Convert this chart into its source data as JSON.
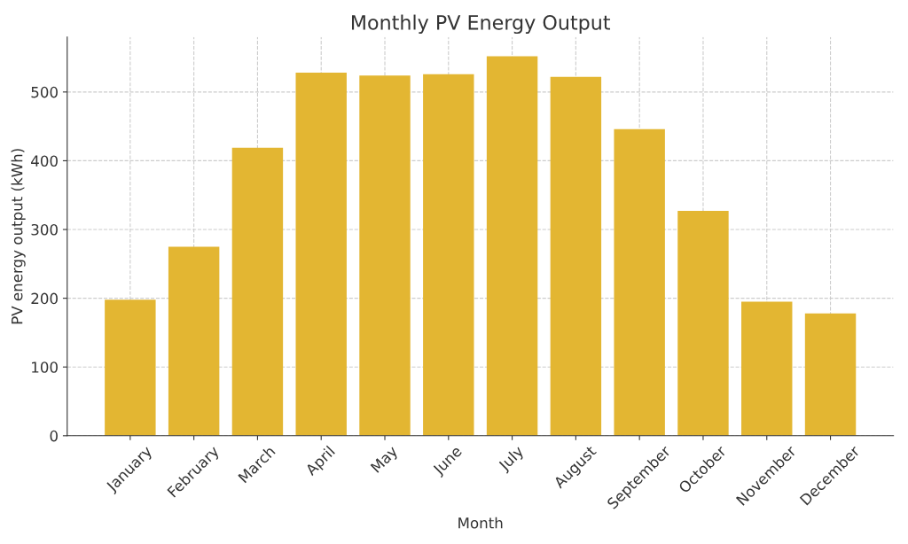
{
  "chart_data": {
    "type": "bar",
    "title": "Monthly PV Energy Output",
    "xlabel": "Month",
    "ylabel": "PV energy output (kWh)",
    "categories": [
      "January",
      "February",
      "March",
      "April",
      "May",
      "June",
      "July",
      "August",
      "September",
      "October",
      "November",
      "December"
    ],
    "values": [
      198,
      275,
      419,
      528,
      524,
      526,
      552,
      522,
      446,
      327,
      195,
      178
    ],
    "color": "#e3b632",
    "ylim": [
      0,
      580
    ],
    "yticks": [
      0,
      100,
      200,
      300,
      400,
      500
    ],
    "grid": true
  }
}
